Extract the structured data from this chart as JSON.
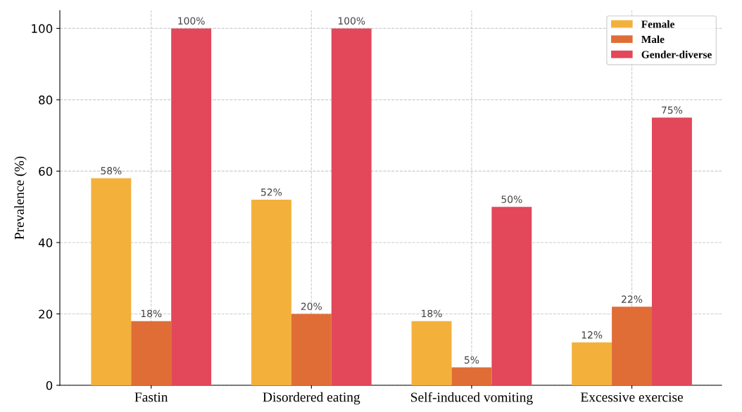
{
  "chart_data": {
    "type": "bar",
    "ylabel": "Prevalence (%)",
    "categories": [
      "Fastin",
      "Disordered eating",
      "Self-induced vomiting",
      "Excessive exercise"
    ],
    "series": [
      {
        "name": "Female",
        "color": "#f3b13c",
        "values": [
          58,
          52,
          18,
          12
        ],
        "value_labels": [
          "58%",
          "52%",
          "18%",
          "12%"
        ]
      },
      {
        "name": "Male",
        "color": "#e06d36",
        "values": [
          18,
          20,
          5,
          22
        ],
        "value_labels": [
          "18%",
          "20%",
          "5%",
          "22%"
        ]
      },
      {
        "name": "Gender-diverse",
        "color": "#e2475a",
        "values": [
          100,
          100,
          50,
          75
        ],
        "value_labels": [
          "100%",
          "100%",
          "50%",
          "75%"
        ]
      }
    ],
    "ylim": [
      0,
      105
    ],
    "yticks": [
      0,
      20,
      40,
      60,
      80,
      100
    ],
    "grid": true,
    "legend": "top right"
  }
}
